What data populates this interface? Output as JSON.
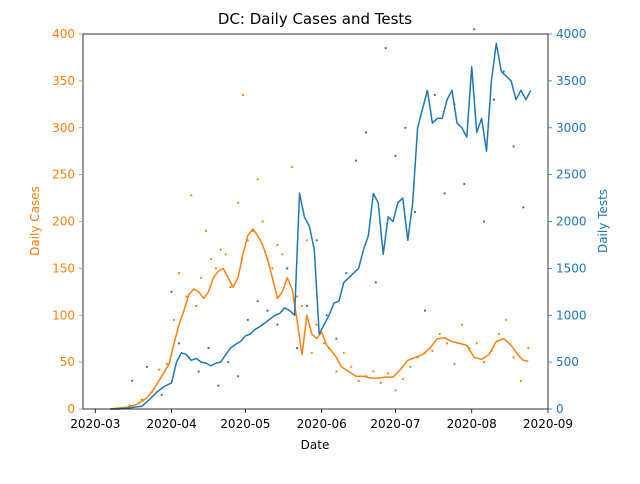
{
  "chart_data": {
    "type": "line",
    "title": "DC: Daily Cases and Tests",
    "xlabel": "Date",
    "ylabel_left": "Daily Cases",
    "ylabel_right": "Daily Tests",
    "xlim": [
      "2020-02-25",
      "2020-09-01"
    ],
    "ylim_left": [
      0,
      400
    ],
    "ylim_right": [
      0,
      4000
    ],
    "xticks": [
      "2020-03",
      "2020-04",
      "2020-05",
      "2020-06",
      "2020-07",
      "2020-08",
      "2020-09"
    ],
    "yticks_left": [
      0,
      50,
      100,
      150,
      200,
      250,
      300,
      350,
      400
    ],
    "yticks_right": [
      0,
      500,
      1000,
      1500,
      2000,
      2500,
      3000,
      3500,
      4000
    ],
    "grid": false,
    "colors": {
      "cases": "#ff7f0e",
      "tests": "#1f77b4",
      "axis": "#000000"
    },
    "series": [
      {
        "axis": "left",
        "style": "line",
        "color": "#ff7f0e",
        "x": [
          "2020-03-07",
          "2020-03-10",
          "2020-03-14",
          "2020-03-18",
          "2020-03-22",
          "2020-03-25",
          "2020-03-28",
          "2020-03-31",
          "2020-04-02",
          "2020-04-04",
          "2020-04-06",
          "2020-04-08",
          "2020-04-10",
          "2020-04-12",
          "2020-04-14",
          "2020-04-16",
          "2020-04-18",
          "2020-04-20",
          "2020-04-22",
          "2020-04-24",
          "2020-04-26",
          "2020-04-28",
          "2020-04-30",
          "2020-05-02",
          "2020-05-04",
          "2020-05-06",
          "2020-05-08",
          "2020-05-10",
          "2020-05-12",
          "2020-05-14",
          "2020-05-16",
          "2020-05-18",
          "2020-05-20",
          "2020-05-22",
          "2020-05-24",
          "2020-05-26",
          "2020-05-28",
          "2020-05-30",
          "2020-06-01",
          "2020-06-03",
          "2020-06-05",
          "2020-06-07",
          "2020-06-09",
          "2020-06-12",
          "2020-06-15",
          "2020-06-18",
          "2020-06-21",
          "2020-06-24",
          "2020-06-27",
          "2020-06-30",
          "2020-07-03",
          "2020-07-06",
          "2020-07-09",
          "2020-07-12",
          "2020-07-15",
          "2020-07-18",
          "2020-07-21",
          "2020-07-24",
          "2020-07-27",
          "2020-07-30",
          "2020-08-02",
          "2020-08-05",
          "2020-08-08",
          "2020-08-11",
          "2020-08-14",
          "2020-08-17",
          "2020-08-20",
          "2020-08-22",
          "2020-08-24"
        ],
        "y": [
          0,
          1,
          2,
          5,
          12,
          22,
          35,
          48,
          70,
          90,
          105,
          122,
          128,
          125,
          118,
          125,
          140,
          147,
          150,
          140,
          130,
          140,
          165,
          185,
          192,
          185,
          175,
          160,
          140,
          118,
          125,
          140,
          128,
          95,
          58,
          100,
          80,
          75,
          82,
          68,
          62,
          55,
          45,
          40,
          35,
          35,
          33,
          33,
          34,
          34,
          42,
          52,
          55,
          58,
          65,
          75,
          76,
          72,
          70,
          68,
          55,
          53,
          58,
          72,
          75,
          68,
          57,
          52,
          51
        ]
      },
      {
        "axis": "left",
        "style": "scatter",
        "color": "#ff7f0e",
        "x": [
          "2020-03-15",
          "2020-03-20",
          "2020-03-24",
          "2020-03-27",
          "2020-03-30",
          "2020-04-02",
          "2020-04-04",
          "2020-04-07",
          "2020-04-09",
          "2020-04-11",
          "2020-04-13",
          "2020-04-15",
          "2020-04-17",
          "2020-04-19",
          "2020-04-21",
          "2020-04-23",
          "2020-04-25",
          "2020-04-28",
          "2020-04-30",
          "2020-05-02",
          "2020-05-04",
          "2020-05-06",
          "2020-05-08",
          "2020-05-10",
          "2020-05-12",
          "2020-05-14",
          "2020-05-16",
          "2020-05-18",
          "2020-05-20",
          "2020-05-22",
          "2020-05-24",
          "2020-05-26",
          "2020-05-28",
          "2020-05-30",
          "2020-06-02",
          "2020-06-04",
          "2020-06-07",
          "2020-06-10",
          "2020-06-13",
          "2020-06-16",
          "2020-06-19",
          "2020-06-22",
          "2020-06-25",
          "2020-06-28",
          "2020-07-01",
          "2020-07-04",
          "2020-07-07",
          "2020-07-10",
          "2020-07-13",
          "2020-07-16",
          "2020-07-19",
          "2020-07-22",
          "2020-07-25",
          "2020-07-28",
          "2020-07-31",
          "2020-08-03",
          "2020-08-06",
          "2020-08-09",
          "2020-08-12",
          "2020-08-15",
          "2020-08-18",
          "2020-08-21",
          "2020-08-24"
        ],
        "y": [
          4,
          10,
          18,
          42,
          48,
          95,
          145,
          120,
          228,
          110,
          140,
          190,
          160,
          150,
          170,
          165,
          130,
          220,
          335,
          180,
          190,
          245,
          200,
          160,
          150,
          175,
          165,
          150,
          258,
          120,
          110,
          180,
          60,
          90,
          70,
          65,
          40,
          60,
          45,
          30,
          35,
          40,
          28,
          38,
          20,
          32,
          45,
          55,
          60,
          62,
          80,
          70,
          48,
          90,
          65,
          70,
          50,
          62,
          80,
          95,
          55,
          30,
          65
        ]
      },
      {
        "axis": "right",
        "style": "line",
        "color": "#1f77b4",
        "x": [
          "2020-03-07",
          "2020-03-10",
          "2020-03-14",
          "2020-03-17",
          "2020-03-20",
          "2020-03-23",
          "2020-03-26",
          "2020-03-29",
          "2020-04-01",
          "2020-04-03",
          "2020-04-05",
          "2020-04-07",
          "2020-04-09",
          "2020-04-11",
          "2020-04-13",
          "2020-04-15",
          "2020-04-17",
          "2020-04-19",
          "2020-04-21",
          "2020-04-23",
          "2020-04-25",
          "2020-04-27",
          "2020-04-29",
          "2020-05-01",
          "2020-05-03",
          "2020-05-05",
          "2020-05-07",
          "2020-05-09",
          "2020-05-11",
          "2020-05-13",
          "2020-05-15",
          "2020-05-17",
          "2020-05-19",
          "2020-05-21",
          "2020-05-23",
          "2020-05-25",
          "2020-05-27",
          "2020-05-29",
          "2020-05-31",
          "2020-06-02",
          "2020-06-04",
          "2020-06-06",
          "2020-06-08",
          "2020-06-10",
          "2020-06-12",
          "2020-06-14",
          "2020-06-16",
          "2020-06-18",
          "2020-06-20",
          "2020-06-22",
          "2020-06-24",
          "2020-06-26",
          "2020-06-28",
          "2020-06-30",
          "2020-07-02",
          "2020-07-04",
          "2020-07-06",
          "2020-07-08",
          "2020-07-10",
          "2020-07-12",
          "2020-07-14",
          "2020-07-16",
          "2020-07-18",
          "2020-07-20",
          "2020-07-22",
          "2020-07-24",
          "2020-07-26",
          "2020-07-28",
          "2020-07-30",
          "2020-08-01",
          "2020-08-03",
          "2020-08-05",
          "2020-08-07",
          "2020-08-09",
          "2020-08-11",
          "2020-08-13",
          "2020-08-15",
          "2020-08-17",
          "2020-08-19",
          "2020-08-21",
          "2020-08-23",
          "2020-08-25"
        ],
        "y": [
          0,
          0,
          10,
          20,
          30,
          100,
          180,
          240,
          280,
          500,
          600,
          580,
          520,
          540,
          500,
          490,
          460,
          490,
          500,
          580,
          650,
          690,
          720,
          780,
          800,
          850,
          880,
          920,
          960,
          1000,
          1020,
          1080,
          1050,
          1000,
          2300,
          2050,
          1950,
          1700,
          800,
          900,
          1000,
          1130,
          1150,
          1350,
          1400,
          1450,
          1500,
          1700,
          1850,
          2300,
          2200,
          1650,
          2050,
          2000,
          2200,
          2250,
          1800,
          2200,
          3000,
          3200,
          3400,
          3050,
          3100,
          3100,
          3300,
          3400,
          3050,
          3000,
          2900,
          3650,
          2950,
          3100,
          2750,
          3500,
          3900,
          3600,
          3550,
          3500,
          3300,
          3400,
          3300,
          3400
        ]
      },
      {
        "axis": "right",
        "style": "scatter",
        "color": "#1f77b4",
        "x": [
          "2020-03-16",
          "2020-03-22",
          "2020-03-28",
          "2020-04-01",
          "2020-04-04",
          "2020-04-08",
          "2020-04-12",
          "2020-04-16",
          "2020-04-20",
          "2020-04-24",
          "2020-04-28",
          "2020-05-02",
          "2020-05-06",
          "2020-05-10",
          "2020-05-14",
          "2020-05-18",
          "2020-05-22",
          "2020-05-26",
          "2020-05-30",
          "2020-06-03",
          "2020-06-07",
          "2020-06-11",
          "2020-06-15",
          "2020-06-19",
          "2020-06-23",
          "2020-06-27",
          "2020-07-01",
          "2020-07-05",
          "2020-07-09",
          "2020-07-13",
          "2020-07-17",
          "2020-07-21",
          "2020-07-25",
          "2020-07-29",
          "2020-08-02",
          "2020-08-06",
          "2020-08-10",
          "2020-08-14",
          "2020-08-18",
          "2020-08-22"
        ],
        "y": [
          300,
          450,
          150,
          1250,
          700,
          550,
          400,
          650,
          250,
          500,
          350,
          950,
          1150,
          1050,
          900,
          1500,
          650,
          1100,
          1800,
          1000,
          750,
          1450,
          2650,
          2950,
          1350,
          3850,
          2700,
          3000,
          2100,
          1050,
          3350,
          2300,
          3250,
          2400,
          4050,
          2000,
          3300,
          3600,
          2800,
          2150
        ]
      }
    ]
  }
}
